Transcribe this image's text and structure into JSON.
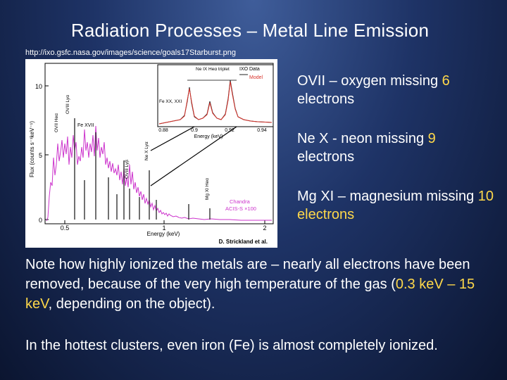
{
  "slide": {
    "title": "Radiation Processes – Metal Line Emission",
    "source_url": "http://ixo.gsfc.nasa.gov/images/science/goals17Starburst.png"
  },
  "figure": {
    "y_axis_label": "Flux (counts s⁻¹keV⁻¹)",
    "y_ticks": [
      "0",
      "5",
      "10"
    ],
    "x_axis_label": "Energy (keV)",
    "x_ticks": [
      "0.5",
      "1",
      "2"
    ],
    "line_labels": [
      "OVIII Lyα",
      "Fe XVII",
      "OVII Heα",
      "OVIII Lyβ",
      "Ne X Lyα",
      "Mg XI Heα"
    ],
    "inset": {
      "x_axis_label": "Energy (keV)",
      "x_ticks": [
        "0.88",
        "0.9",
        "0.92",
        "0.94"
      ],
      "legend_data": "IXO Data",
      "legend_model": "Model",
      "labels": [
        "Ne IX Heα triplet",
        "Fe XX, XXI"
      ]
    },
    "instrument_label_1": "Chandra",
    "instrument_label_2": "ACIS-S ×100",
    "credit": "D. Strickland et al.",
    "colors": {
      "ixo_data": "#222222",
      "model": "#d9332b",
      "chandra": "#cc33cc"
    }
  },
  "bullets": [
    {
      "pre": "OVII – oxygen missing ",
      "highlight": "6",
      "post": " electrons"
    },
    {
      "pre": "Ne X -  neon missing ",
      "highlight": "9",
      "post": " electrons"
    },
    {
      "pre": "Mg XI – magnesium missing ",
      "highlight": "10 electrons",
      "post": ""
    }
  ],
  "note": {
    "pre": "Note how highly ionized the metals are – nearly all electrons have been removed, because of the very high temperature of the gas (",
    "highlight": "0.3 keV – 15 keV",
    "post": ", depending on the object)."
  },
  "note2": "In the hottest clusters, even iron (Fe) is almost completely ionized."
}
